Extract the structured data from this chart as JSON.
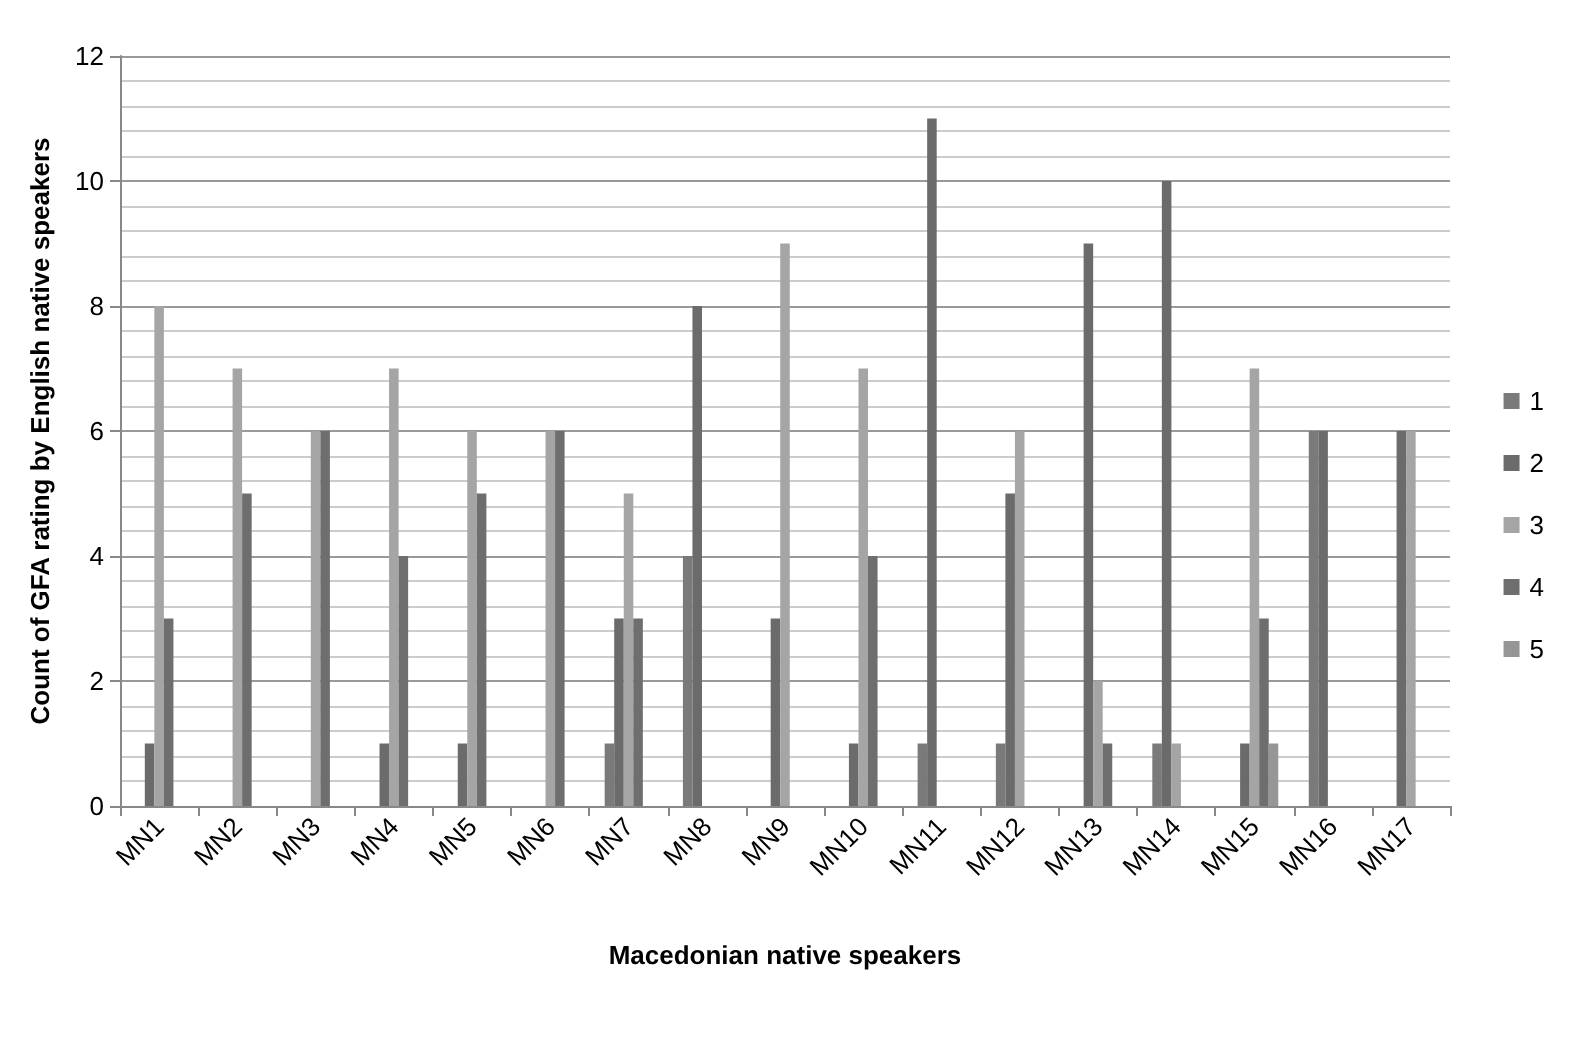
{
  "chart_data": {
    "type": "bar",
    "xlabel": "Macedonian native speakers",
    "ylabel": "Count of GFA rating by English native speakers",
    "categories": [
      "MN1",
      "MN2",
      "MN3",
      "MN4",
      "MN5",
      "MN6",
      "MN7",
      "MN8",
      "MN9",
      "MN10",
      "MN11",
      "MN12",
      "MN13",
      "MN14",
      "MN15",
      "MN16",
      "MN17"
    ],
    "series": [
      {
        "name": "1",
        "color": "#7a7a7a",
        "values": [
          0,
          0,
          0,
          0,
          0,
          0,
          1,
          4,
          0,
          0,
          1,
          1,
          0,
          1,
          0,
          6,
          0
        ]
      },
      {
        "name": "2",
        "color": "#6b6b6b",
        "values": [
          1,
          0,
          0,
          1,
          1,
          0,
          3,
          8,
          3,
          1,
          11,
          5,
          9,
          10,
          1,
          6,
          6
        ]
      },
      {
        "name": "3",
        "color": "#a5a5a5",
        "values": [
          8,
          7,
          6,
          7,
          6,
          6,
          5,
          0,
          9,
          7,
          0,
          6,
          2,
          1,
          7,
          0,
          6
        ]
      },
      {
        "name": "4",
        "color": "#6e6e6e",
        "values": [
          3,
          5,
          6,
          4,
          5,
          6,
          3,
          0,
          0,
          4,
          0,
          0,
          1,
          0,
          3,
          0,
          0
        ]
      },
      {
        "name": "5",
        "color": "#969696",
        "values": [
          0,
          0,
          0,
          0,
          0,
          0,
          0,
          0,
          0,
          0,
          0,
          0,
          0,
          0,
          1,
          0,
          0
        ]
      }
    ],
    "ylim": [
      0,
      12
    ],
    "yticks": [
      0,
      2,
      4,
      6,
      8,
      10,
      12
    ],
    "grid": "y",
    "legend": "right"
  }
}
